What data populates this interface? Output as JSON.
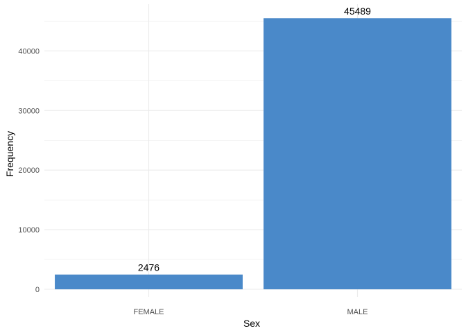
{
  "chart_data": {
    "type": "bar",
    "categories": [
      "FEMALE",
      "MALE"
    ],
    "values": [
      2476,
      45489
    ],
    "data_labels": [
      "2476",
      "45489"
    ],
    "xlabel": "Sex",
    "ylabel": "Frequency",
    "ylim": [
      0,
      47500
    ],
    "y_ticks": [
      0,
      10000,
      20000,
      30000,
      40000
    ],
    "y_tick_labels": [
      "0",
      "10000",
      "20000",
      "30000",
      "40000"
    ],
    "grid": true,
    "bar_color": "#4a89c9",
    "grid_color": "#ebebeb"
  }
}
